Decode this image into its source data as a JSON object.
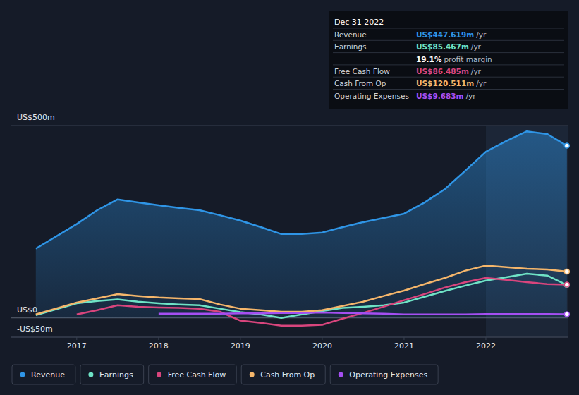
{
  "chart_data": {
    "type": "line",
    "x": [
      2016.5,
      2017,
      2017.25,
      2017.5,
      2017.75,
      2018,
      2018.25,
      2018.5,
      2018.75,
      2019,
      2019.25,
      2019.5,
      2019.75,
      2020,
      2020.25,
      2020.5,
      2020.75,
      2021,
      2021.25,
      2021.5,
      2021.75,
      2022,
      2022.25,
      2022.5,
      2022.75,
      2022.99
    ],
    "series": [
      {
        "name": "Revenue",
        "color": "#2f95e6",
        "type": "area",
        "values": [
          180,
          244,
          280,
          308,
          300,
          293,
          286,
          280,
          267,
          253,
          236,
          218,
          218,
          222,
          236,
          249,
          260,
          271,
          300,
          335,
          383,
          432,
          460,
          485,
          478,
          447.619
        ]
      },
      {
        "name": "Earnings",
        "color": "#6fe3c6",
        "values": [
          7,
          38,
          44,
          48,
          42,
          38,
          35,
          33,
          24,
          15,
          9,
          0,
          9,
          18,
          26,
          29,
          33,
          40,
          55,
          70,
          84,
          97,
          106,
          115,
          110,
          85.467
        ]
      },
      {
        "name": "Free Cash Flow",
        "color": "#d9457d",
        "values": [
          null,
          9,
          20,
          33,
          29,
          27,
          26,
          24,
          16,
          -7,
          -13,
          -20,
          -20,
          -18,
          -2,
          13,
          29,
          46,
          62,
          79,
          93,
          104,
          99,
          93,
          88,
          86.485
        ]
      },
      {
        "name": "Cash From Op",
        "color": "#f5b66b",
        "values": [
          9,
          40,
          51,
          62,
          57,
          53,
          51,
          49,
          35,
          24,
          20,
          16,
          16,
          20,
          31,
          42,
          57,
          71,
          88,
          104,
          123,
          136,
          132,
          128,
          126,
          120.511
        ]
      },
      {
        "name": "Operating Expenses",
        "color": "#a54ff2",
        "values": [
          null,
          null,
          null,
          null,
          null,
          11,
          11,
          11,
          11,
          12,
          12,
          13,
          13,
          14,
          13,
          12,
          11,
          9,
          9,
          9,
          9,
          10,
          10,
          10,
          10,
          9.683
        ]
      }
    ],
    "xlim": [
      2016.2,
      2023.0
    ],
    "xticks": [
      2017,
      2018,
      2019,
      2020,
      2021,
      2022
    ],
    "ylim": [
      -50,
      500
    ],
    "yticks": [
      {
        "value": -50,
        "label": "-US$50m"
      },
      {
        "value": 0,
        "label": "US$0"
      },
      {
        "value": 500,
        "label": "US$500m"
      }
    ],
    "grid": true,
    "legend": "bottom",
    "tooltip": {
      "title": "Dec 31 2022",
      "rows": [
        {
          "label": "Revenue",
          "value": "US$447.619m",
          "unit": "/yr"
        },
        {
          "label": "Earnings",
          "value": "US$85.467m",
          "unit": "/yr"
        },
        {
          "value": "19.1%",
          "unit": "profit margin"
        },
        {
          "label": "Free Cash Flow",
          "value": "US$86.485m",
          "unit": "/yr"
        },
        {
          "label": "Cash From Op",
          "value": "US$120.511m",
          "unit": "/yr"
        },
        {
          "label": "Operating Expenses",
          "value": "US$9.683m",
          "unit": "/yr"
        }
      ]
    }
  }
}
